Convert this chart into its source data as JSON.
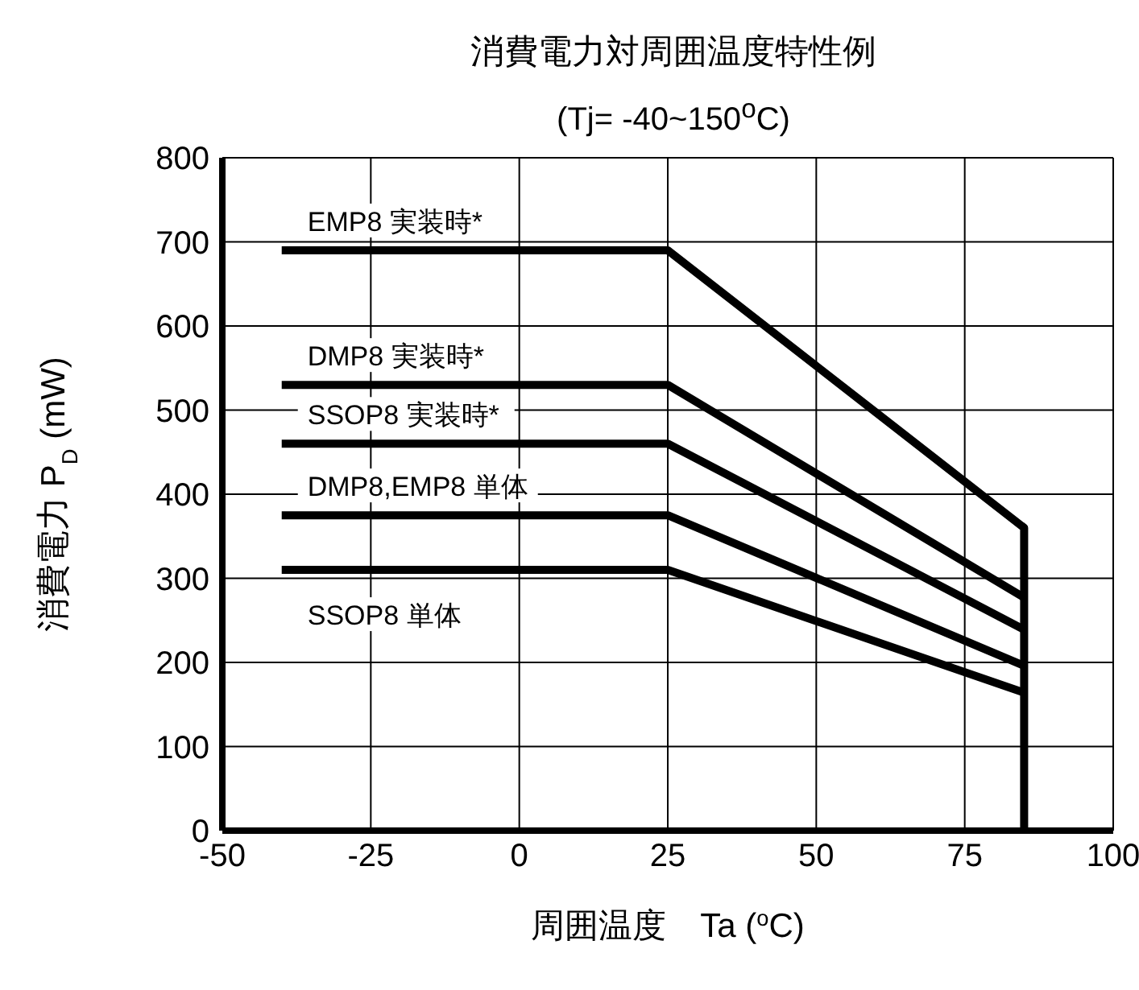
{
  "chart_data": {
    "type": "line",
    "title": "消費電力対周囲温度特性例",
    "subtitle": "(Tj= -40~150$^{o}$C)",
    "xlabel": "周囲温度　Ta  ($^{o}$C)",
    "ylabel": "消費電力  P$_{D}$  (mW)",
    "series": [
      {
        "name": "EMP8 実装時*",
        "color": "#000000",
        "x": [
          -40,
          25,
          85,
          85
        ],
        "values": [
          690,
          690,
          360,
          0
        ]
      },
      {
        "name": "DMP8 実装時*",
        "color": "#000000",
        "x": [
          -40,
          25,
          85
        ],
        "values": [
          530,
          530,
          277
        ]
      },
      {
        "name": "SSOP8 実装時*",
        "color": "#000000",
        "x": [
          -40,
          25,
          85
        ],
        "values": [
          460,
          460,
          239
        ]
      },
      {
        "name": "DMP8,EMP8 単体",
        "color": "#000000",
        "x": [
          -40,
          25,
          85
        ],
        "values": [
          375,
          375,
          196
        ]
      },
      {
        "name": "SSOP8 単体",
        "color": "#000000",
        "x": [
          -40,
          25,
          85
        ],
        "values": [
          310,
          310,
          164
        ]
      }
    ],
    "xlim": [
      -50,
      100
    ],
    "xticks": [
      -50,
      -25,
      0,
      25,
      50,
      75,
      100
    ],
    "ylim": [
      0,
      800
    ],
    "yticks": [
      0,
      100,
      200,
      300,
      400,
      500,
      600,
      700,
      800
    ],
    "grid": true,
    "legend": false,
    "marker": "none",
    "line_style": "solid"
  }
}
